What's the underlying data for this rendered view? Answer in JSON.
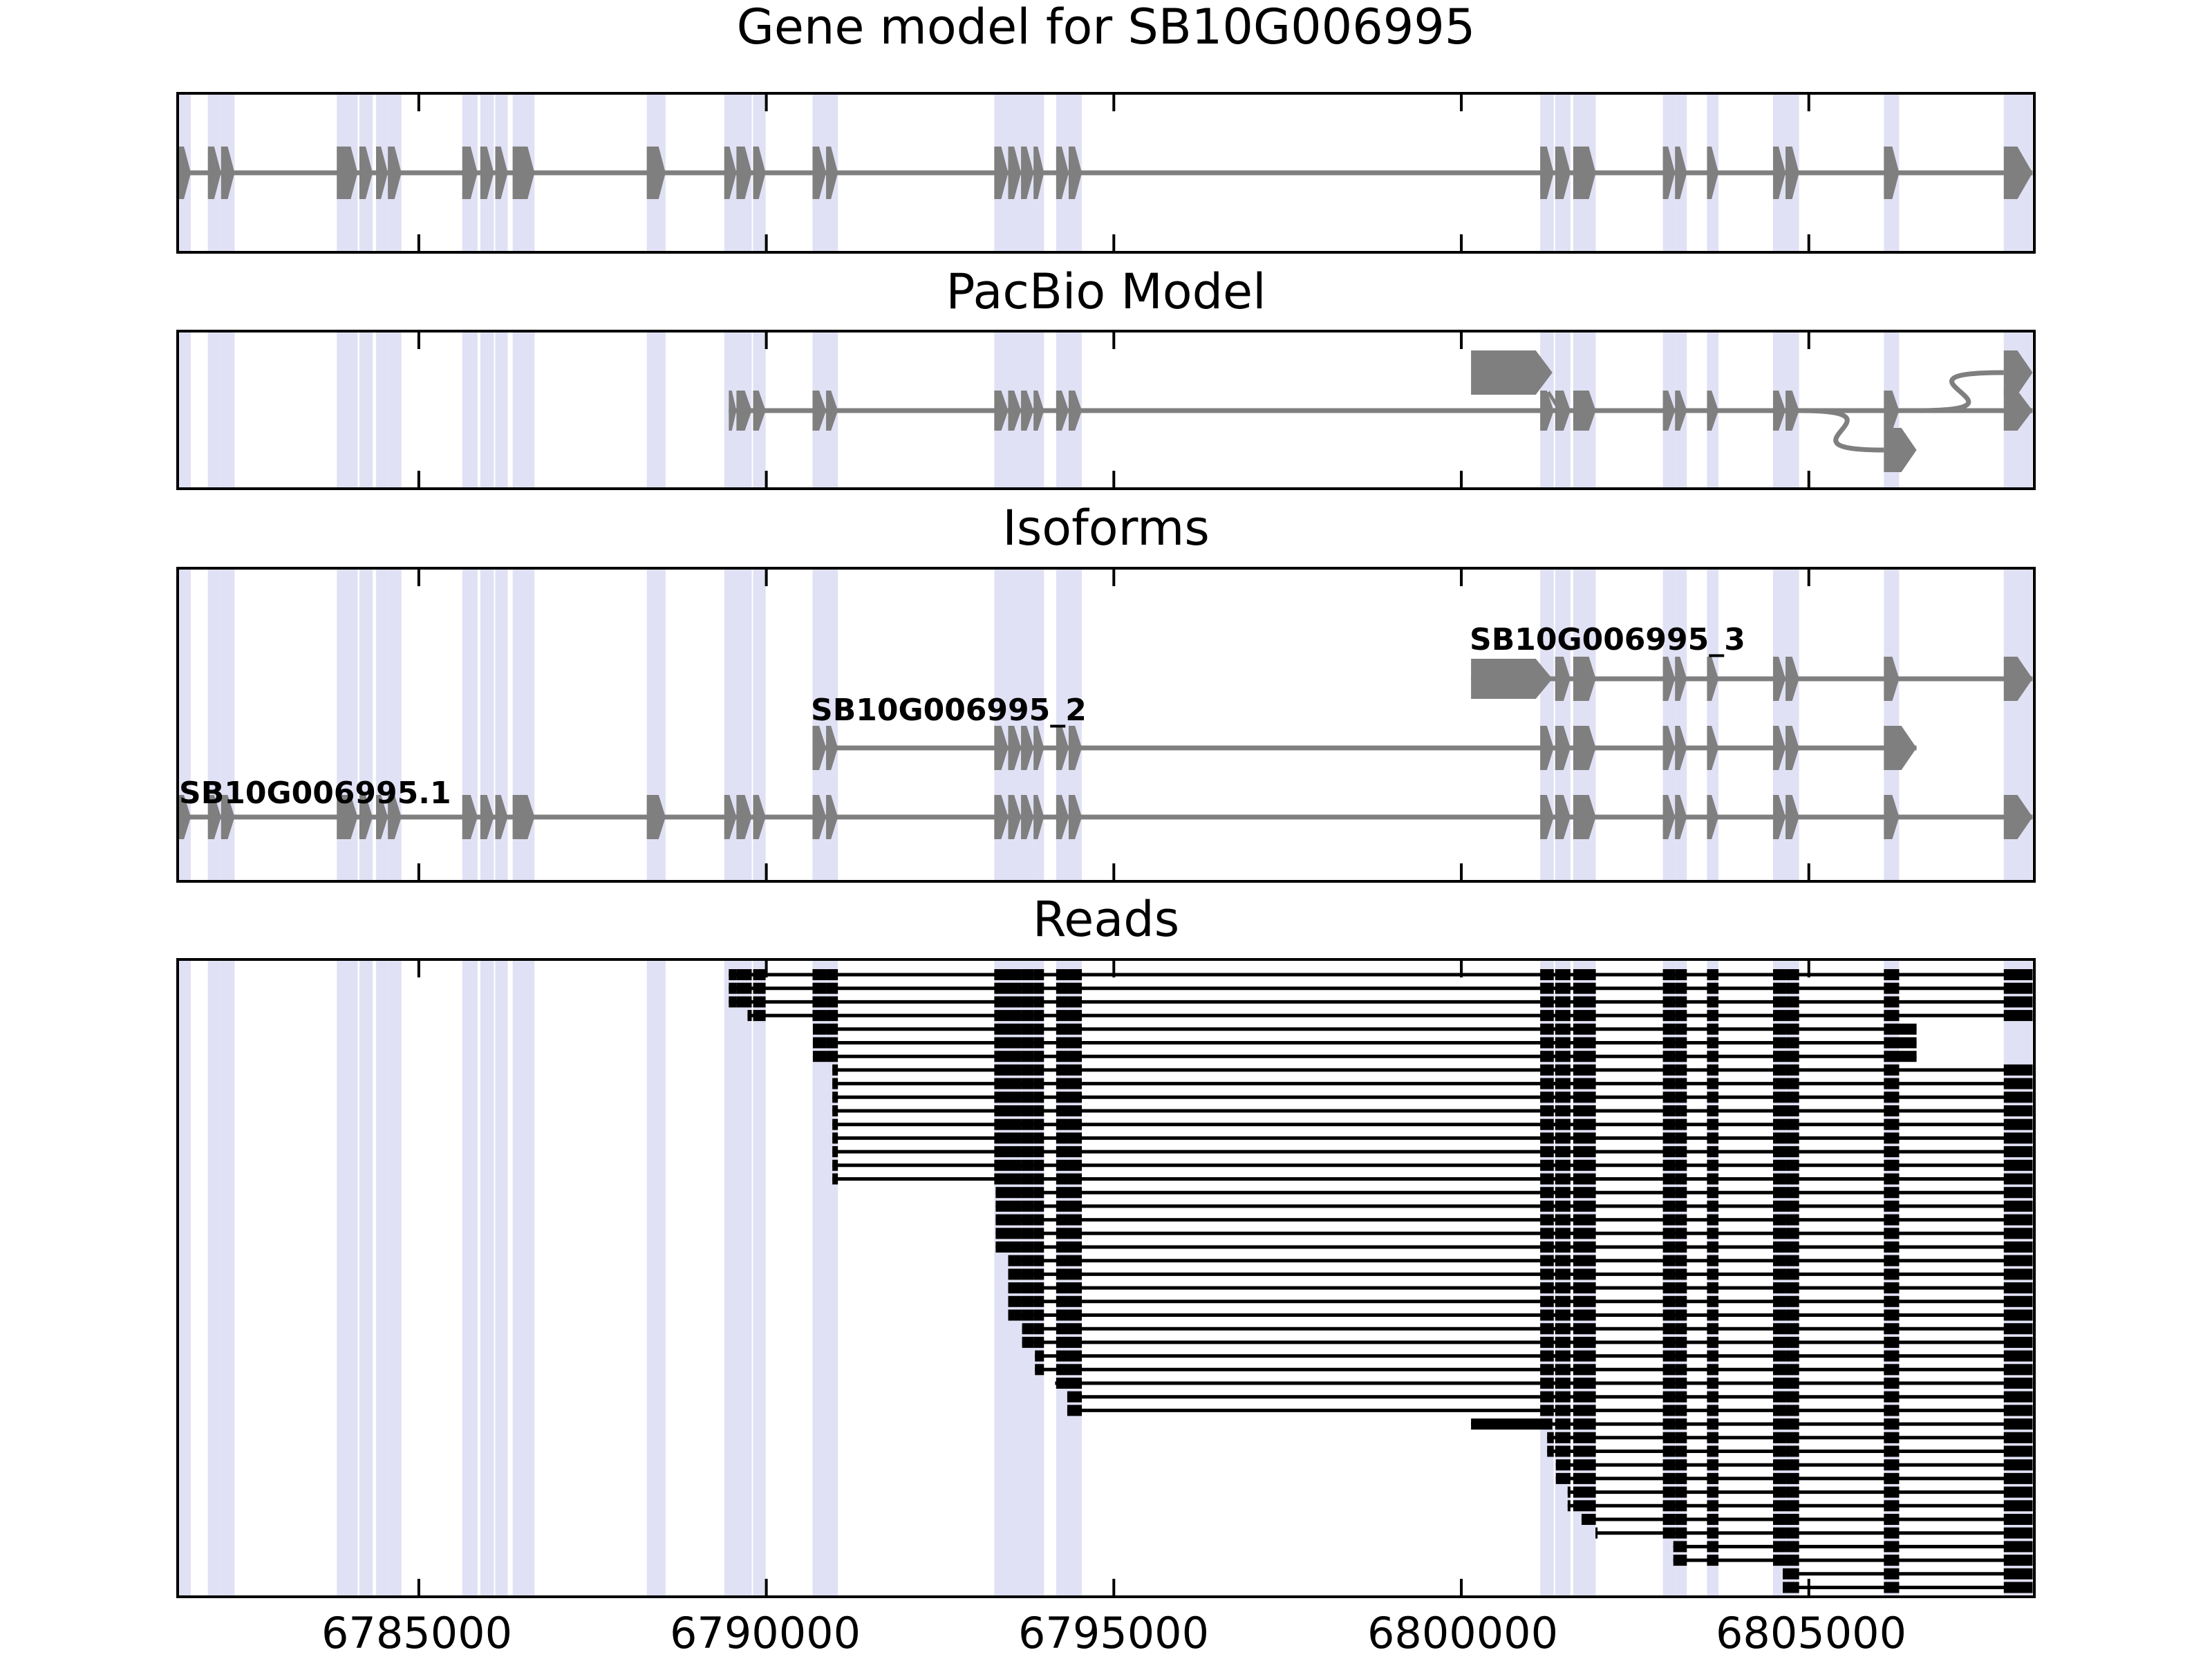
{
  "titles": {
    "gene": "Gene model for SB10G006995",
    "pacbio": "PacBio Model",
    "isoforms": "Isoforms",
    "reads": "Reads"
  },
  "colors": {
    "structure": "#7f7f7f",
    "line": "#7f7f7f",
    "read": "#000000",
    "highlight": "#dadaf2",
    "border": "#000000",
    "background": "#ffffff",
    "text": "#000000"
  },
  "axis": {
    "min": 6781550,
    "max": 6808225,
    "ticks": [
      {
        "value": 6785000,
        "label": "6785000"
      },
      {
        "value": 6790000,
        "label": "6790000"
      },
      {
        "value": 6795000,
        "label": "6795000"
      },
      {
        "value": 6800000,
        "label": "6800000"
      },
      {
        "value": 6805000,
        "label": "6805000"
      }
    ]
  },
  "chart_data": {
    "type": "gene-model-tracks",
    "title": "Gene model for SB10G006995",
    "panels": [
      "Gene model for SB10G006995",
      "PacBio Model",
      "Isoforms",
      "Reads"
    ],
    "x_range": [
      6781550,
      6808225
    ],
    "x_tick_values": [
      6785000,
      6790000,
      6795000,
      6800000,
      6805000
    ],
    "gene_exons": [
      [
        6781550,
        6781720
      ],
      [
        6781965,
        6782155
      ],
      [
        6782155,
        6782350
      ],
      [
        6783820,
        6784120
      ],
      [
        6784145,
        6784335
      ],
      [
        6784385,
        6784555
      ],
      [
        6784555,
        6784750
      ],
      [
        6785625,
        6785845
      ],
      [
        6785885,
        6786080
      ],
      [
        6786100,
        6786280
      ],
      [
        6786350,
        6786665
      ],
      [
        6788280,
        6788550
      ],
      [
        6789395,
        6789570
      ],
      [
        6789570,
        6789790
      ],
      [
        6789810,
        6789990
      ],
      [
        6790665,
        6790860
      ],
      [
        6790860,
        6791030
      ],
      [
        6793280,
        6793480
      ],
      [
        6793480,
        6793665
      ],
      [
        6793665,
        6793845
      ],
      [
        6793845,
        6793995
      ],
      [
        6794170,
        6794350
      ],
      [
        6794350,
        6794540
      ],
      [
        6801135,
        6801330
      ],
      [
        6801350,
        6801570
      ],
      [
        6801610,
        6801935
      ],
      [
        6802900,
        6803075
      ],
      [
        6803075,
        6803245
      ],
      [
        6803535,
        6803700
      ],
      [
        6804485,
        6804665
      ],
      [
        6804665,
        6804860
      ],
      [
        6806080,
        6806300
      ],
      [
        6807805,
        6808220
      ]
    ],
    "gene_line": [
      6781550,
      6808220
    ],
    "pacbio_model": {
      "main": {
        "line": [
          6789460,
          6808220
        ],
        "exon_range": [
          12,
          31
        ],
        "arrow": [
          6807805,
          6808220
        ]
      },
      "upper": {
        "box": [
          6800140,
          6801310
        ],
        "connector_to": 6801420,
        "curve_from": 6806550,
        "arrow": [
          6807805,
          6808220
        ]
      },
      "lower": {
        "curve_from": 6804860,
        "arrow": [
          6806080,
          6806550
        ]
      }
    },
    "isoforms": [
      {
        "label": "SB10G006995_3",
        "line": [
          6800140,
          6808220
        ],
        "box": [
          6800140,
          6801310
        ],
        "exon_range": [
          24,
          31
        ],
        "arrow": [
          6807805,
          6808220
        ]
      },
      {
        "label": "SB10G006995_2",
        "line": [
          6790665,
          6806550
        ],
        "exon_range": [
          15,
          30
        ],
        "arrow": [
          6806080,
          6806550
        ]
      },
      {
        "label": "SB10G006995.1",
        "line": [
          6781550,
          6808220
        ],
        "exon_range": [
          0,
          31
        ],
        "arrow": [
          6807805,
          6808220
        ]
      }
    ],
    "reads": [
      [
        6789460,
        6808220,
        "f"
      ],
      [
        6789460,
        6808220,
        "f"
      ],
      [
        6789460,
        6808220,
        "f"
      ],
      [
        6789730,
        6808220,
        "f"
      ],
      [
        6790670,
        6806550,
        "s"
      ],
      [
        6790670,
        6806550,
        "s"
      ],
      [
        6790670,
        6806550,
        "s"
      ],
      [
        6790950,
        6808220,
        "f"
      ],
      [
        6790950,
        6808220,
        "f"
      ],
      [
        6790950,
        6808220,
        "f"
      ],
      [
        6790950,
        6808220,
        "f"
      ],
      [
        6790950,
        6808220,
        "f"
      ],
      [
        6790950,
        6808220,
        "f"
      ],
      [
        6790950,
        6808220,
        "f"
      ],
      [
        6790950,
        6808220,
        "f"
      ],
      [
        6790950,
        6808220,
        "f"
      ],
      [
        6793300,
        6808220,
        "f"
      ],
      [
        6793300,
        6808220,
        "f"
      ],
      [
        6793300,
        6808220,
        "f"
      ],
      [
        6793300,
        6808220,
        "f"
      ],
      [
        6793300,
        6808220,
        "f"
      ],
      [
        6793480,
        6808220,
        "f"
      ],
      [
        6793480,
        6808220,
        "f"
      ],
      [
        6793480,
        6808220,
        "f"
      ],
      [
        6793480,
        6808220,
        "f"
      ],
      [
        6793480,
        6808220,
        "f"
      ],
      [
        6793680,
        6808220,
        "f"
      ],
      [
        6793680,
        6808220,
        "f"
      ],
      [
        6793865,
        6808220,
        "f"
      ],
      [
        6793865,
        6808220,
        "f"
      ],
      [
        6794155,
        6808220,
        "f"
      ],
      [
        6794330,
        6808220,
        "f"
      ],
      [
        6794330,
        6808220,
        "f"
      ],
      [
        6800140,
        6808220,
        "l"
      ],
      [
        6801235,
        6808220,
        "f"
      ],
      [
        6801235,
        6808220,
        "f"
      ],
      [
        6801360,
        6808220,
        "f"
      ],
      [
        6801360,
        6808220,
        "f"
      ],
      [
        6801530,
        6808220,
        "f"
      ],
      [
        6801530,
        6808220,
        "f"
      ],
      [
        6801730,
        6808220,
        "f"
      ],
      [
        6801930,
        6808220,
        "f"
      ],
      [
        6803050,
        6808220,
        "f"
      ],
      [
        6803050,
        6808220,
        "f"
      ],
      [
        6804625,
        6808220,
        "f"
      ],
      [
        6804625,
        6808220,
        "f"
      ]
    ],
    "read_short_end_block": [
      6806080,
      6806550
    ],
    "read_long_start_block": [
      6800140,
      6801310
    ]
  }
}
